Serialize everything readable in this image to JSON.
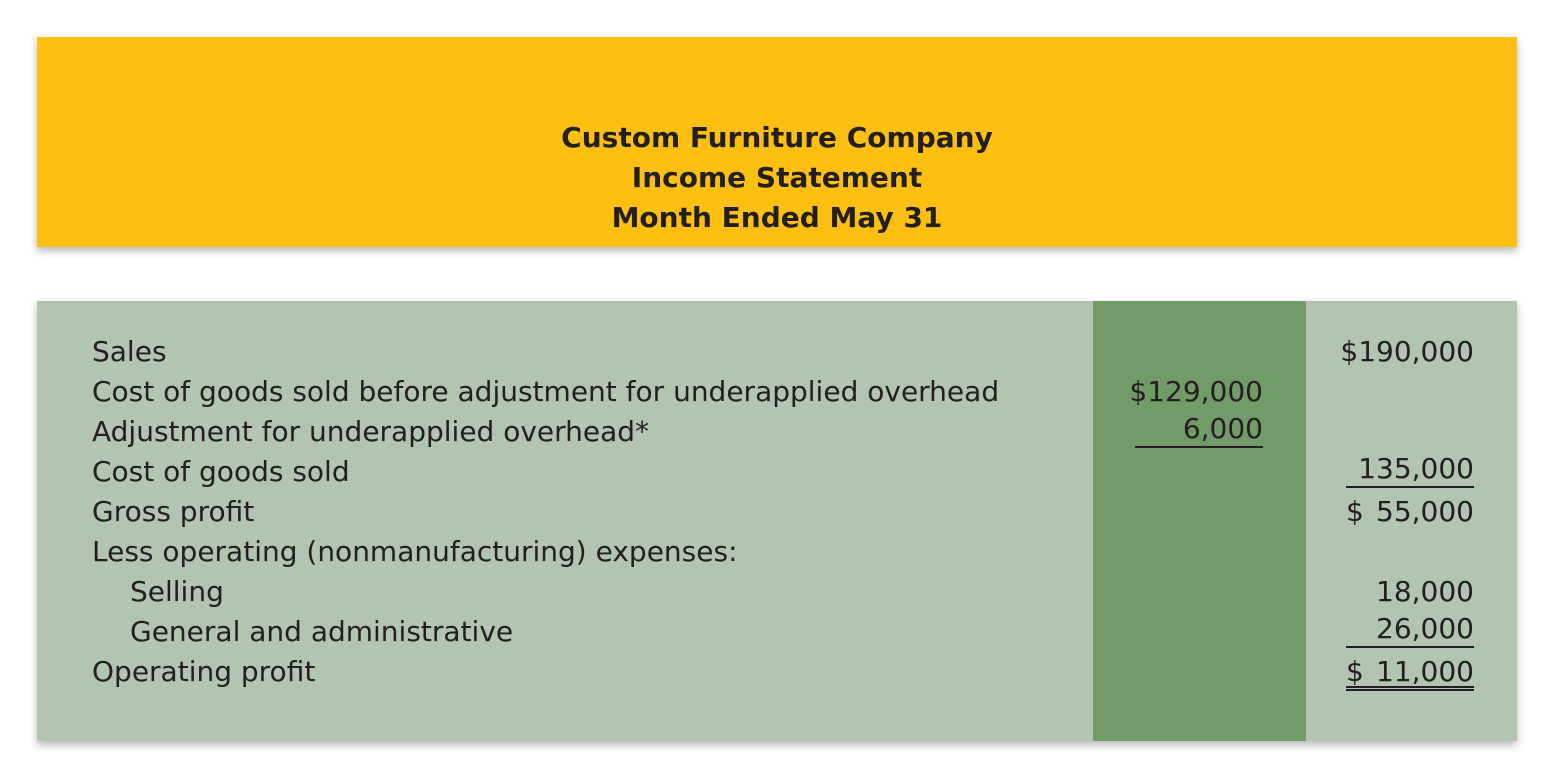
{
  "header": {
    "company": "Custom Furniture Company",
    "statement": "Income Statement",
    "period": "Month Ended May 31"
  },
  "rows": [
    {
      "label": "Sales",
      "col2": "$190,000"
    },
    {
      "label": "Cost of goods sold before adjustment for underapplied overhead",
      "col1": "$129,000"
    },
    {
      "label": "Adjustment for underapplied overhead*",
      "col1": "6,000"
    },
    {
      "label": "Cost of goods sold",
      "col2": "135,000"
    },
    {
      "label": "Gross profit",
      "col2_sign": "$",
      "col2_num": "55,000"
    },
    {
      "label": "Less operating (nonmanufacturing) expenses:"
    },
    {
      "label": "Selling",
      "col2": "18,000"
    },
    {
      "label": "General and administrative",
      "col2": "26,000"
    },
    {
      "label": "Operating profit",
      "col2_sign": "$",
      "col2_num": "11,000"
    }
  ],
  "colors": {
    "header_bg": "#fcbf12",
    "body_bg": "#b1c5b0",
    "column_bg": "#729c67"
  }
}
